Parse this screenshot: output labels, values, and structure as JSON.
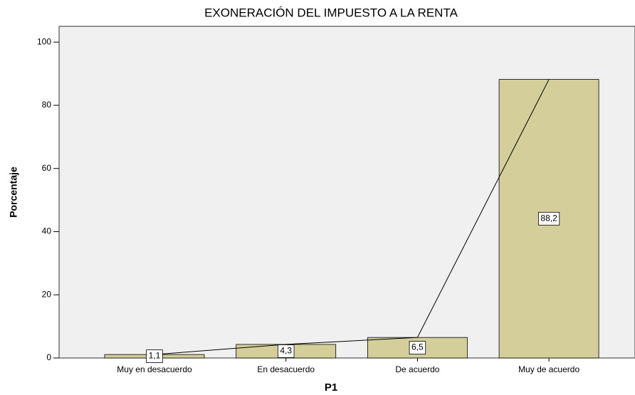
{
  "chart_data": {
    "type": "bar",
    "title": "EXONERACIÓN DEL IMPUESTO A LA RENTA",
    "x_label": "P1",
    "y_label": "Porcentaje",
    "categories": [
      "Muy en desacuerdo",
      "En desacuerdo",
      "De acuerdo",
      "Muy de acuerdo"
    ],
    "values": [
      1.1,
      4.3,
      6.5,
      88.2
    ],
    "value_labels": [
      "1,1",
      "4,3",
      "6,5",
      "88,2"
    ],
    "color": "#d4cf9a",
    "ylim": [
      0,
      105
    ],
    "yticks": [
      0,
      20,
      40,
      60,
      80,
      100
    ]
  }
}
